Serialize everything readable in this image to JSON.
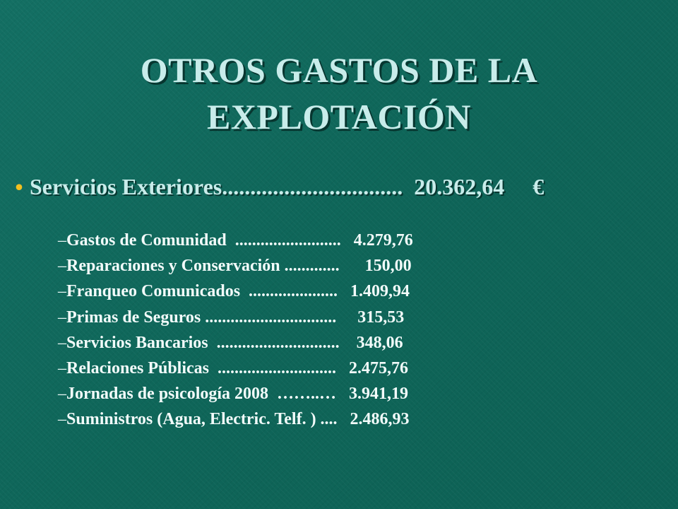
{
  "slide": {
    "title_line1": "OTROS GASTOS DE LA",
    "title_line2": "EXPLOTACIÓN",
    "main_item": {
      "bullet": "•",
      "label": "Servicios Exteriores................................  20.362,64     €"
    },
    "dash": "–",
    "items": [
      {
        "text": "Gastos de Comunidad  .........................   4.279,76"
      },
      {
        "text": "Reparaciones y Conservación .............      150,00"
      },
      {
        "text": "Franqueo Comunicados  .....................   1.409,94"
      },
      {
        "text": "Primas de Seguros ...............................     315,53"
      },
      {
        "text": "Servicios Bancarios  .............................    348,06"
      },
      {
        "text": "Relaciones Públicas  ............................   2.475,76"
      },
      {
        "text": "Jornadas de psicología 2008  ……..…   3.941,19"
      },
      {
        "text": "Suministros (Agua, Electric. Telf. ) ....   2.486,93"
      }
    ],
    "colors": {
      "background": "#0f6a5e",
      "title": "#c8ecea",
      "bullet": "#f2c020",
      "text": "#f2fbfa"
    }
  }
}
